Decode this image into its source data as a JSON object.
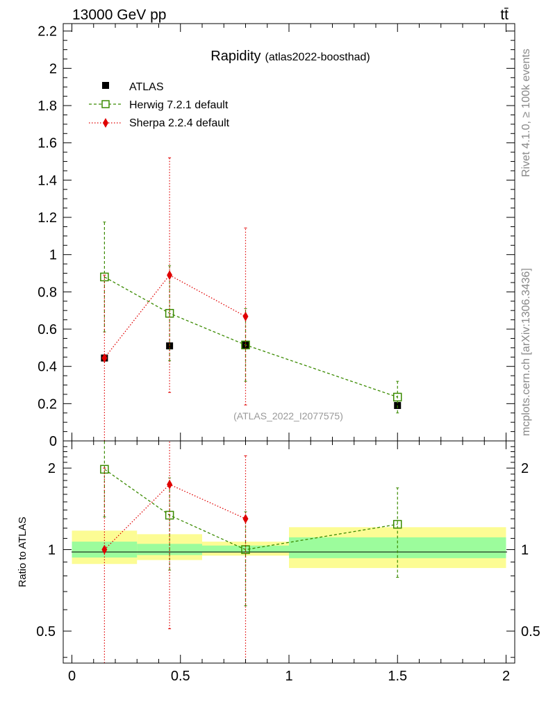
{
  "header": {
    "energy_label": "13000 GeV pp",
    "process_label": "tt̄"
  },
  "side_labels": {
    "rivet": "Rivet 4.1.0, ≥ 100k events",
    "mcplots": "mcplots.cern.ch [arXiv:1306.3436]"
  },
  "chart_data": [
    {
      "type": "scatter",
      "panel": "main",
      "title": "Rapidity",
      "subtitle": "(atlas2022-boosthad)",
      "watermark": "(ATLAS_2022_I2077575)",
      "xlim": [
        -0.04,
        2.04
      ],
      "ylim": [
        0,
        2.24
      ],
      "yticks": [
        {
          "v": 0,
          "label": "0"
        },
        {
          "v": 0.2,
          "label": "0.2"
        },
        {
          "v": 0.4,
          "label": "0.4"
        },
        {
          "v": 0.6,
          "label": "0.6"
        },
        {
          "v": 0.8,
          "label": "0.8"
        },
        {
          "v": 1.0,
          "label": "1"
        },
        {
          "v": 1.2,
          "label": "1.2"
        },
        {
          "v": 1.4,
          "label": "1.4"
        },
        {
          "v": 1.6,
          "label": "1.6"
        },
        {
          "v": 1.8,
          "label": "1.8"
        },
        {
          "v": 2.0,
          "label": "2"
        },
        {
          "v": 2.2,
          "label": "2.2"
        }
      ],
      "legend_position": "top-left",
      "series": [
        {
          "name": "ATLAS",
          "color": "#000000",
          "marker": "filled-square",
          "line": "none",
          "x": [
            0.15,
            0.45,
            0.8,
            1.5
          ],
          "y": [
            0.445,
            0.51,
            0.515,
            0.19
          ],
          "err_low": [
            0.01,
            0.01,
            0.01,
            0.01
          ],
          "err_high": [
            0.01,
            0.01,
            0.01,
            0.01
          ]
        },
        {
          "name": "Herwig 7.2.1 default",
          "color": "#3a8a00",
          "marker": "open-square",
          "line": "dashed",
          "x": [
            0.15,
            0.45,
            0.8,
            1.5
          ],
          "y": [
            0.88,
            0.685,
            0.515,
            0.235
          ],
          "err_low": [
            0.295,
            0.255,
            0.195,
            0.085
          ],
          "err_high": [
            0.295,
            0.255,
            0.195,
            0.085
          ]
        },
        {
          "name": "Sherpa 2.2.4 default",
          "color": "#e00000",
          "marker": "filled-diamond",
          "line": "dotted",
          "x": [
            0.15,
            0.45,
            0.8
          ],
          "y": [
            0.445,
            0.89,
            0.668
          ],
          "err_low": [
            0.445,
            0.63,
            0.475
          ],
          "err_high": [
            0.445,
            0.63,
            0.475
          ]
        }
      ]
    },
    {
      "type": "scatter",
      "panel": "ratio",
      "ylabel": "Ratio to ATLAS",
      "xlim": [
        -0.04,
        2.04
      ],
      "ylim_log": [
        0.381,
        2.52
      ],
      "xticks": [
        {
          "v": 0,
          "label": "0"
        },
        {
          "v": 0.5,
          "label": "0.5"
        },
        {
          "v": 1.0,
          "label": "1"
        },
        {
          "v": 1.5,
          "label": "1.5"
        },
        {
          "v": 2.0,
          "label": "2"
        }
      ],
      "yticks": [
        {
          "v": 0.5,
          "label": "0.5"
        },
        {
          "v": 1.0,
          "label": "1"
        },
        {
          "v": 2.0,
          "label": "2"
        }
      ],
      "bands": [
        {
          "xlo": 0.0,
          "xhi": 0.3,
          "inner": [
            0.935,
            1.07
          ],
          "outer": [
            0.885,
            1.175
          ]
        },
        {
          "xlo": 0.3,
          "xhi": 0.6,
          "inner": [
            0.955,
            1.05
          ],
          "outer": [
            0.915,
            1.14
          ]
        },
        {
          "xlo": 0.6,
          "xhi": 1.0,
          "inner": [
            0.975,
            1.035
          ],
          "outer": [
            0.95,
            1.07
          ]
        },
        {
          "xlo": 1.0,
          "xhi": 2.0,
          "inner": [
            0.93,
            1.11
          ],
          "outer": [
            0.855,
            1.21
          ]
        }
      ],
      "band_colors": {
        "inner": "#9cfc9c",
        "outer": "#fcfc94"
      },
      "series": [
        {
          "name": "Herwig 7.2.1 default",
          "color": "#3a8a00",
          "marker": "open-square",
          "line": "dashed",
          "x": [
            0.15,
            0.45,
            0.8,
            1.5
          ],
          "y": [
            1.98,
            1.34,
            1.0,
            1.24
          ],
          "err_low": [
            0.66,
            0.5,
            0.38,
            0.45
          ],
          "err_high": [
            0.66,
            0.5,
            0.38,
            0.45
          ]
        },
        {
          "name": "Sherpa 2.2.4 default",
          "color": "#e00000",
          "marker": "filled-diamond",
          "line": "dotted",
          "x": [
            0.15,
            0.45,
            0.8
          ],
          "y": [
            1.0,
            1.74,
            1.3
          ],
          "err_low": [
            1.0,
            1.23,
            0.92
          ],
          "err_high": [
            1.0,
            1.23,
            0.92
          ]
        }
      ]
    }
  ]
}
